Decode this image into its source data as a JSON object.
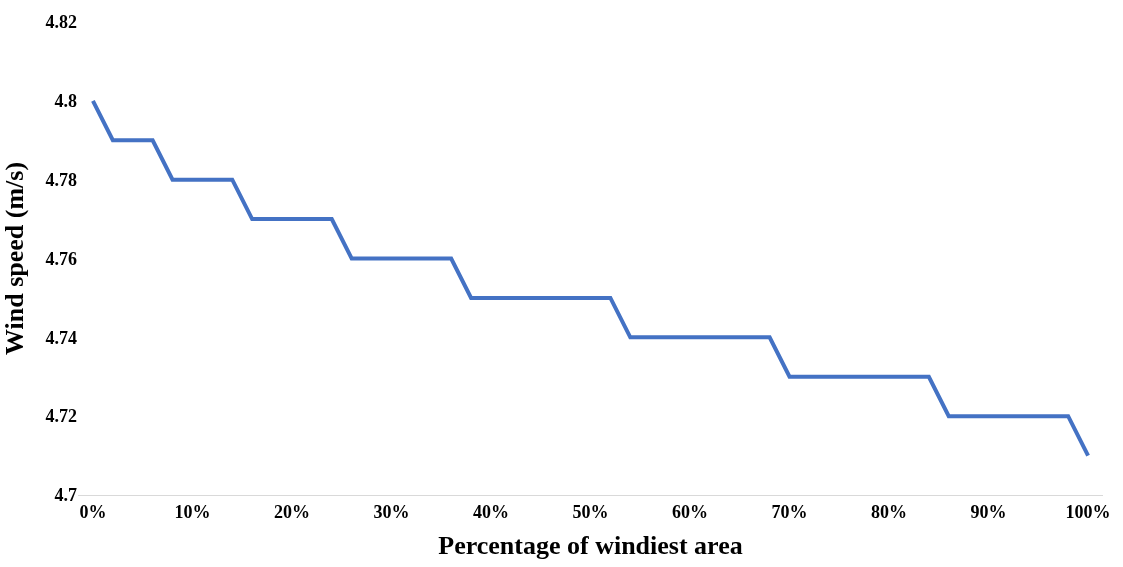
{
  "chart_data": {
    "type": "line",
    "xlabel": "Percentage of windiest area",
    "ylabel": "Wind speed (m/s)",
    "x": [
      0,
      2,
      6,
      8,
      14,
      16,
      24,
      26,
      36,
      38,
      52,
      54,
      68,
      70,
      84,
      86,
      98,
      100
    ],
    "series": [
      {
        "color": "#4472c4",
        "values": [
          4.8,
          4.79,
          4.79,
          4.78,
          4.78,
          4.77,
          4.77,
          4.76,
          4.76,
          4.75,
          4.75,
          4.74,
          4.74,
          4.73,
          4.73,
          4.72,
          4.72,
          4.71
        ]
      }
    ],
    "xlim": [
      -1.5,
      101.5
    ],
    "xticks": [
      {
        "value": 0,
        "label": "0%"
      },
      {
        "value": 10,
        "label": "10%"
      },
      {
        "value": 20,
        "label": "20%"
      },
      {
        "value": 30,
        "label": "30%"
      },
      {
        "value": 40,
        "label": "40%"
      },
      {
        "value": 50,
        "label": "50%"
      },
      {
        "value": 60,
        "label": "60%"
      },
      {
        "value": 70,
        "label": "70%"
      },
      {
        "value": 80,
        "label": "80%"
      },
      {
        "value": 90,
        "label": "90%"
      },
      {
        "value": 100,
        "label": "100%"
      }
    ],
    "ylim": [
      4.7,
      4.82
    ],
    "yticks": [
      4.7,
      4.72,
      4.74,
      4.76,
      4.78,
      4.8,
      4.82
    ],
    "legend": false,
    "marker": "none",
    "line_style": "solid"
  }
}
